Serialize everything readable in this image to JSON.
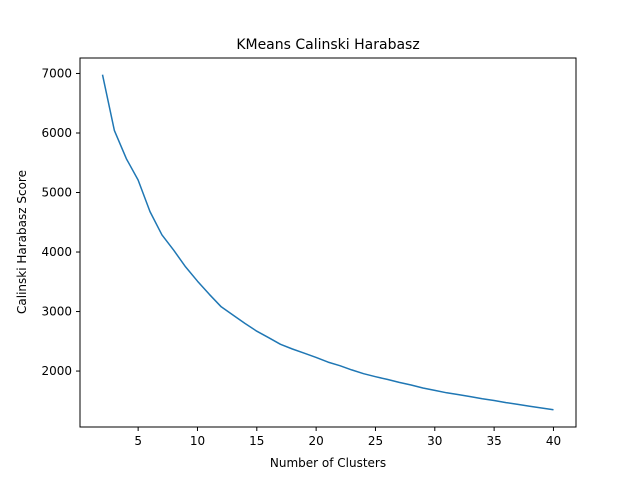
{
  "chart_data": {
    "type": "line",
    "title": "KMeans Calinski Harabasz",
    "xlabel": "Number of Clusters",
    "ylabel": "Calinski Harabasz Score",
    "xlim": [
      0.1,
      41.9
    ],
    "ylim": [
      1060,
      7260
    ],
    "xticks": [
      5,
      10,
      15,
      20,
      25,
      30,
      35,
      40
    ],
    "yticks": [
      2000,
      3000,
      4000,
      5000,
      6000,
      7000
    ],
    "grid": false,
    "series": [
      {
        "color": "#1f77b4",
        "x": [
          2,
          3,
          4,
          5,
          6,
          7,
          8,
          9,
          10,
          11,
          12,
          13,
          14,
          15,
          16,
          17,
          18,
          19,
          20,
          21,
          22,
          23,
          24,
          25,
          26,
          27,
          28,
          29,
          30,
          31,
          32,
          33,
          34,
          35,
          36,
          37,
          38,
          39,
          40
        ],
        "y": [
          6980,
          6040,
          5570,
          5210,
          4680,
          4290,
          4030,
          3750,
          3510,
          3290,
          3080,
          2940,
          2800,
          2670,
          2560,
          2450,
          2370,
          2300,
          2230,
          2150,
          2090,
          2020,
          1955,
          1905,
          1860,
          1810,
          1765,
          1715,
          1675,
          1635,
          1605,
          1570,
          1535,
          1505,
          1470,
          1440,
          1410,
          1380,
          1350
        ]
      }
    ]
  }
}
